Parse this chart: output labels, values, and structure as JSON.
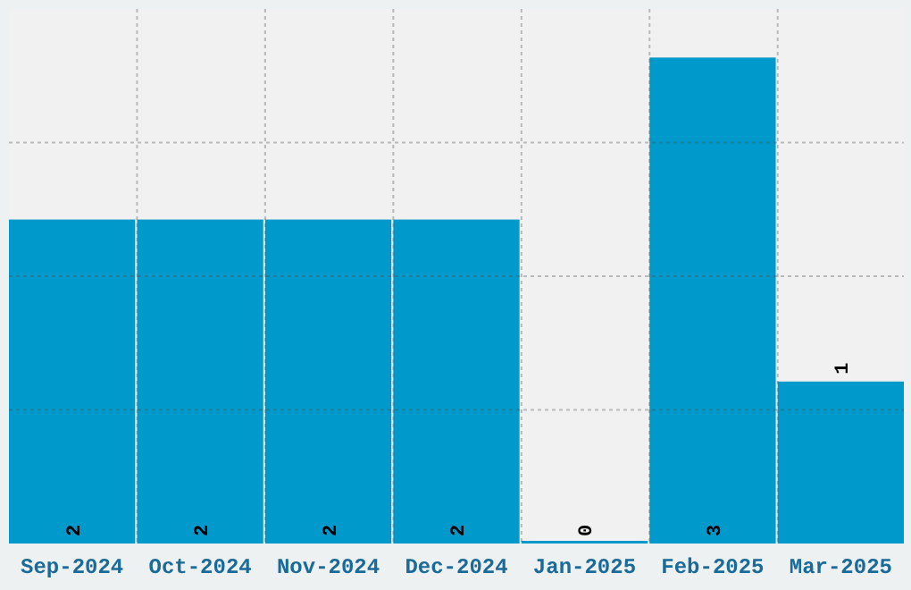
{
  "chart_data": {
    "type": "bar",
    "categories": [
      "Sep-2024",
      "Oct-2024",
      "Nov-2024",
      "Dec-2024",
      "Jan-2025",
      "Feb-2025",
      "Mar-2025"
    ],
    "values": [
      2,
      2,
      2,
      2,
      0,
      3,
      1
    ],
    "color": "#0099cc",
    "data_labels": true,
    "ylim": [
      0,
      3.3
    ],
    "yticks": [
      {
        "value": 0.825,
        "label": null
      },
      {
        "value": 1.65,
        "label": null
      },
      {
        "value": 2.475,
        "label": null
      }
    ],
    "grid": true,
    "tick_labels": "x"
  }
}
